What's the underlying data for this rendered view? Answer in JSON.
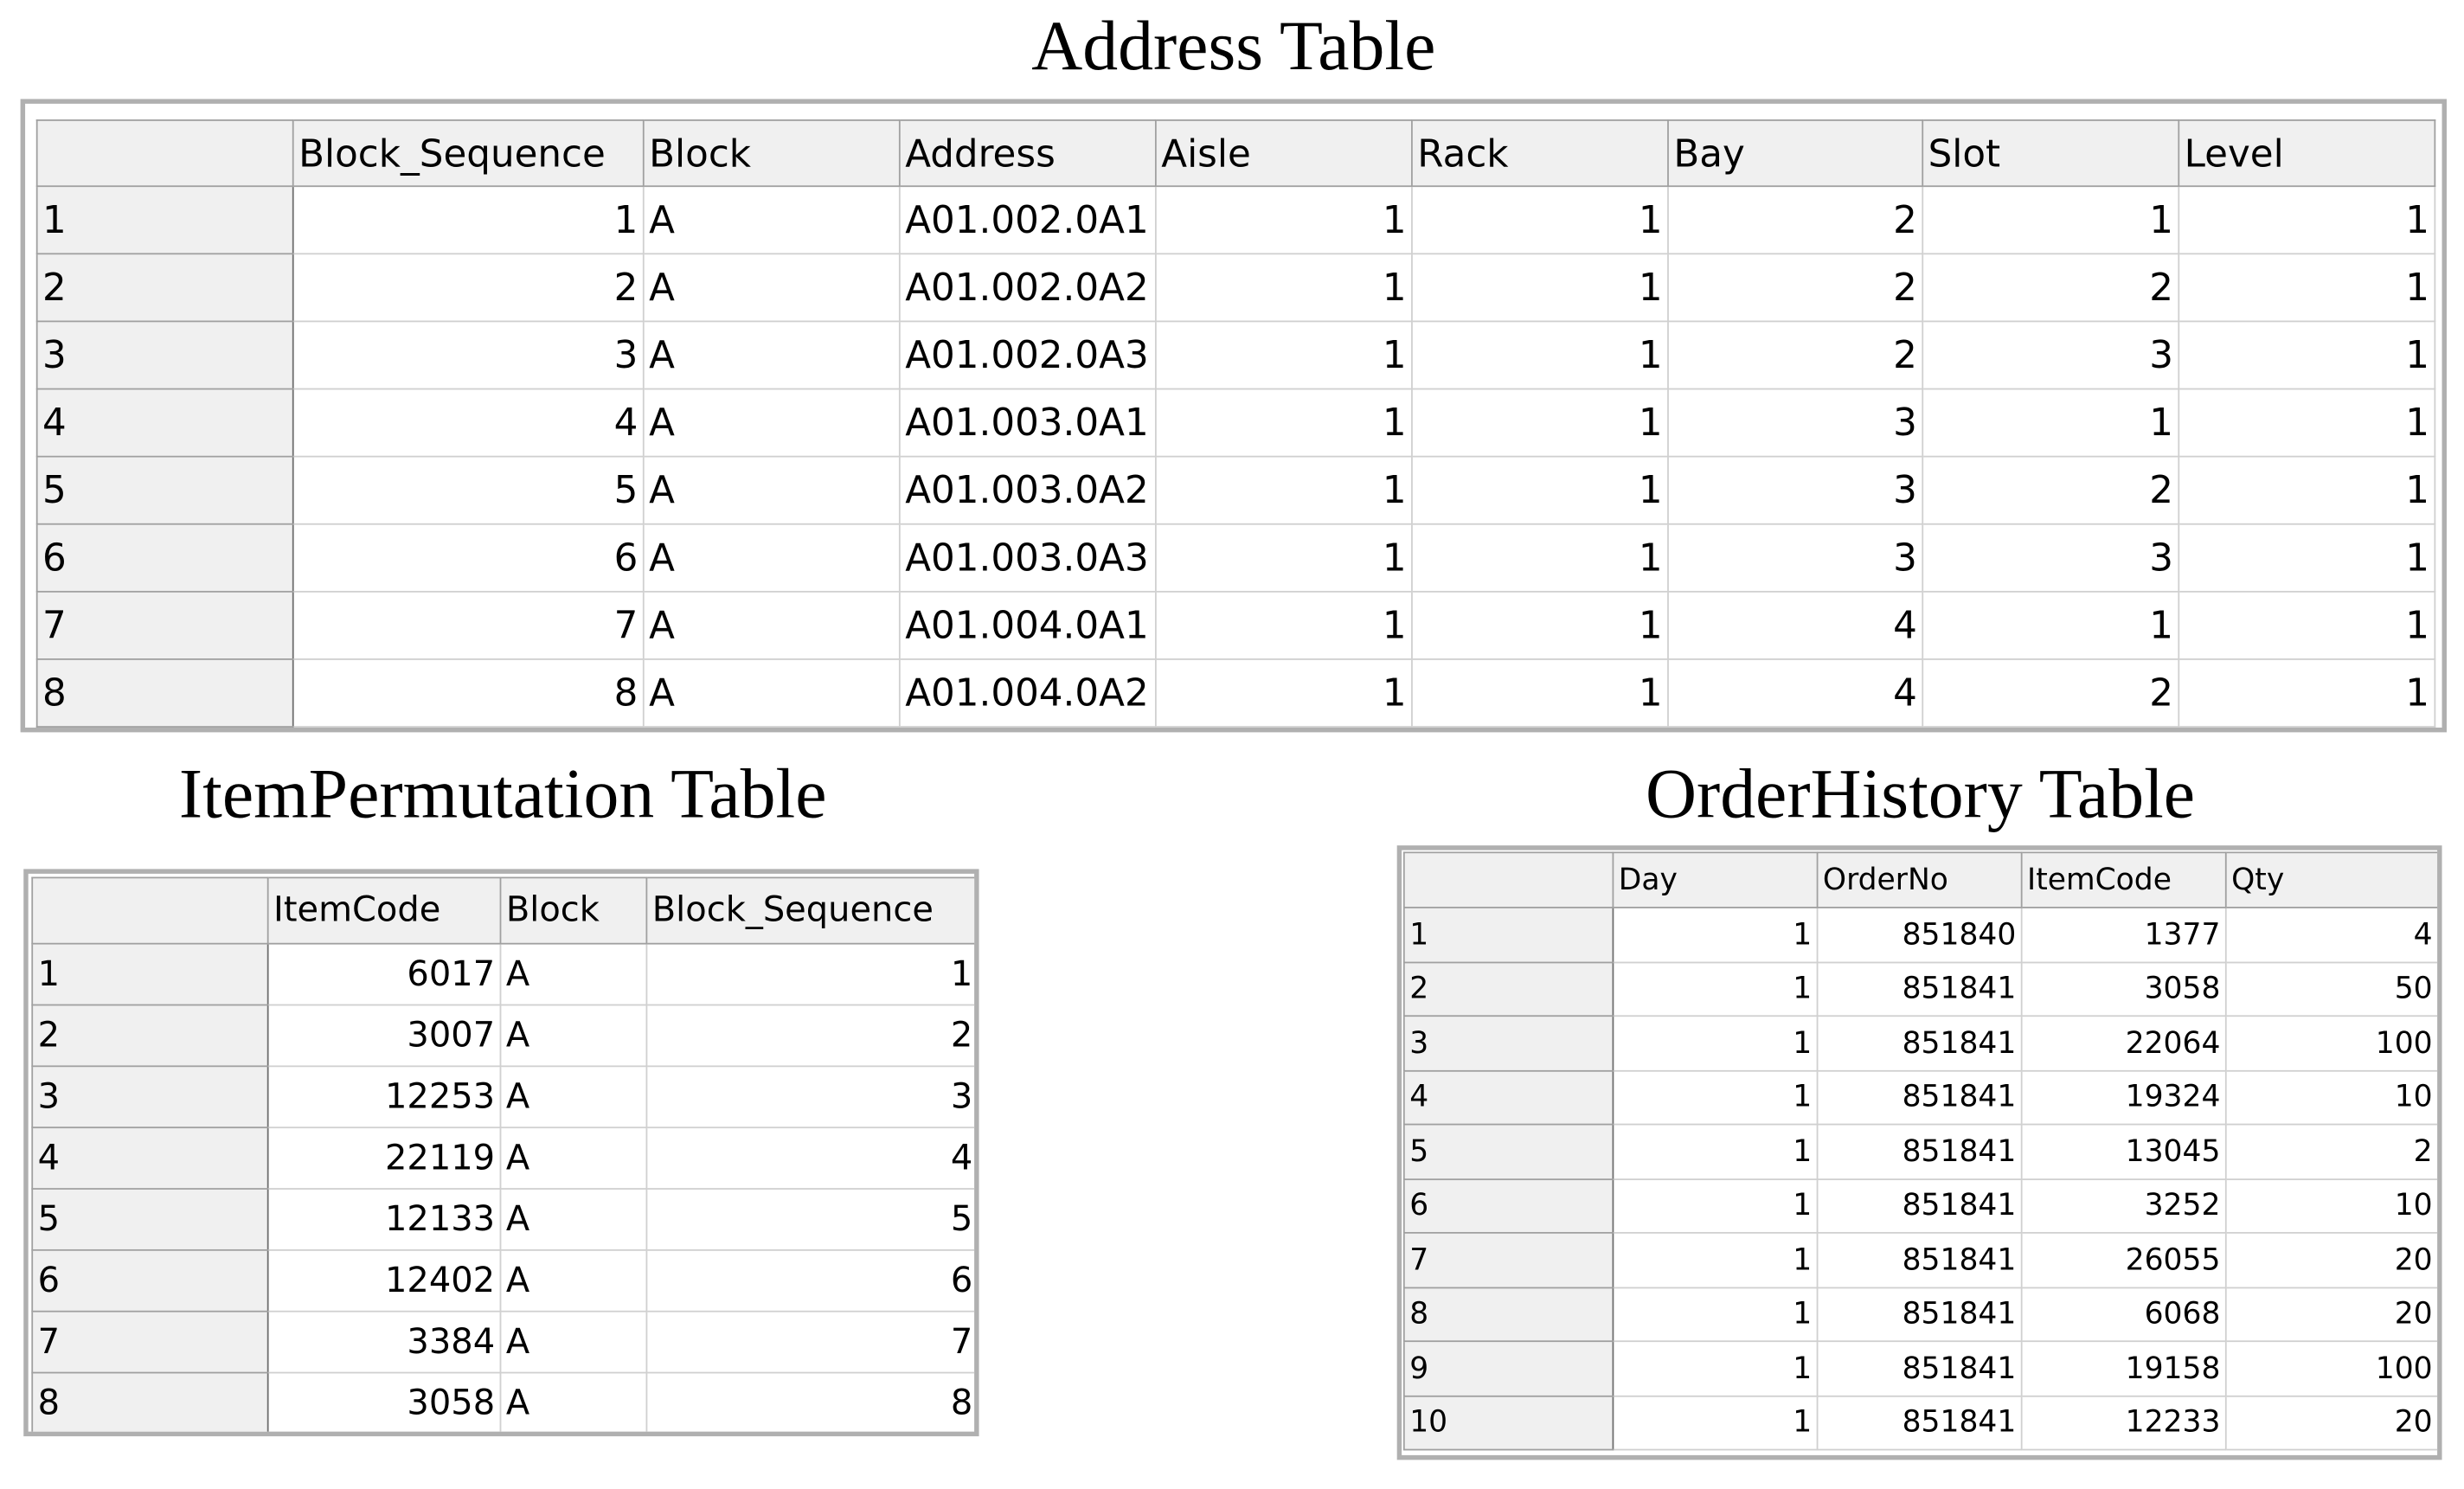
{
  "address_table": {
    "title": "Address Table",
    "columns": [
      "Block_Sequence",
      "Block",
      "Address",
      "Aisle",
      "Rack",
      "Bay",
      "Slot",
      "Level"
    ],
    "rows": [
      [
        1,
        1,
        "A",
        "A01.002.0A1",
        1,
        1,
        2,
        1,
        1
      ],
      [
        2,
        2,
        "A",
        "A01.002.0A2",
        1,
        1,
        2,
        2,
        1
      ],
      [
        3,
        3,
        "A",
        "A01.002.0A3",
        1,
        1,
        2,
        3,
        1
      ],
      [
        4,
        4,
        "A",
        "A01.003.0A1",
        1,
        1,
        3,
        1,
        1
      ],
      [
        5,
        5,
        "A",
        "A01.003.0A2",
        1,
        1,
        3,
        2,
        1
      ],
      [
        6,
        6,
        "A",
        "A01.003.0A3",
        1,
        1,
        3,
        3,
        1
      ],
      [
        7,
        7,
        "A",
        "A01.004.0A1",
        1,
        1,
        4,
        1,
        1
      ],
      [
        8,
        8,
        "A",
        "A01.004.0A2",
        1,
        1,
        4,
        2,
        1
      ]
    ]
  },
  "item_permutation_table": {
    "title": "ItemPermutation Table",
    "columns": [
      "ItemCode",
      "Block",
      "Block_Sequence"
    ],
    "rows": [
      [
        1,
        6017,
        "A",
        1
      ],
      [
        2,
        3007,
        "A",
        2
      ],
      [
        3,
        12253,
        "A",
        3
      ],
      [
        4,
        22119,
        "A",
        4
      ],
      [
        5,
        12133,
        "A",
        5
      ],
      [
        6,
        12402,
        "A",
        6
      ],
      [
        7,
        3384,
        "A",
        7
      ],
      [
        8,
        3058,
        "A",
        8
      ]
    ]
  },
  "order_history_table": {
    "title": "OrderHistory Table",
    "columns": [
      "Day",
      "OrderNo",
      "ItemCode",
      "Qty"
    ],
    "rows": [
      [
        1,
        1,
        851840,
        1377,
        4
      ],
      [
        2,
        1,
        851841,
        3058,
        50
      ],
      [
        3,
        1,
        851841,
        22064,
        100
      ],
      [
        4,
        1,
        851841,
        19324,
        10
      ],
      [
        5,
        1,
        851841,
        13045,
        2
      ],
      [
        6,
        1,
        851841,
        3252,
        10
      ],
      [
        7,
        1,
        851841,
        26055,
        20
      ],
      [
        8,
        1,
        851841,
        6068,
        20
      ],
      [
        9,
        1,
        851841,
        19158,
        100
      ],
      [
        10,
        1,
        851841,
        12233,
        20
      ]
    ]
  }
}
